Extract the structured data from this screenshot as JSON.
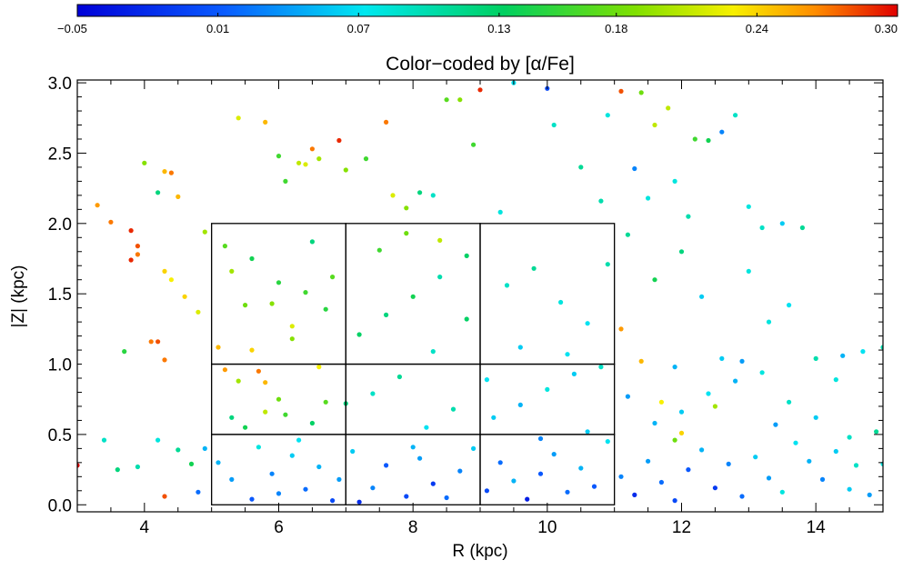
{
  "chart_data": {
    "type": "scatter",
    "title": "Color−coded by [α/Fe]",
    "xlabel": "R (kpc)",
    "ylabel": "|Z| (kpc)",
    "xlim": [
      3,
      15
    ],
    "ylim": [
      -0.05,
      3.02
    ],
    "x_ticks": [
      4,
      6,
      8,
      10,
      12,
      14
    ],
    "x_tick_labels": [
      "4",
      "6",
      "8",
      "10",
      "12",
      "14"
    ],
    "y_ticks": [
      0,
      0.5,
      1,
      1.5,
      2,
      2.5,
      3
    ],
    "y_tick_labels": [
      "0.0",
      "0.5",
      "1.0",
      "1.5",
      "2.0",
      "2.5",
      "3.0"
    ],
    "colorbar": {
      "label": "[α/Fe]",
      "range": [
        -0.05,
        0.3
      ],
      "tick_values": [
        -0.05,
        0.01,
        0.07,
        0.13,
        0.18,
        0.24,
        0.3
      ],
      "tick_labels": [
        "−0.05",
        "0.01",
        "0.07",
        "0.13",
        "0.18",
        "0.24",
        "0.30"
      ],
      "colormap": "rainbow"
    },
    "grid_boxes": [
      {
        "x0": 5,
        "x1": 7,
        "y0": 0,
        "y1": 0.5
      },
      {
        "x0": 5,
        "x1": 7,
        "y0": 0.5,
        "y1": 1.0
      },
      {
        "x0": 5,
        "x1": 7,
        "y0": 1.0,
        "y1": 2.0
      },
      {
        "x0": 7,
        "x1": 9,
        "y0": 0,
        "y1": 0.5
      },
      {
        "x0": 7,
        "x1": 9,
        "y0": 0.5,
        "y1": 1.0
      },
      {
        "x0": 7,
        "x1": 9,
        "y0": 1.0,
        "y1": 2.0
      },
      {
        "x0": 9,
        "x1": 11,
        "y0": 0,
        "y1": 0.5
      },
      {
        "x0": 9,
        "x1": 11,
        "y0": 0.5,
        "y1": 1.0
      },
      {
        "x0": 9,
        "x1": 11,
        "y0": 1.0,
        "y1": 2.0
      }
    ],
    "points": [
      [
        3.3,
        2.13,
        0.26
      ],
      [
        3.5,
        2.01,
        0.27
      ],
      [
        3.8,
        1.95,
        0.29
      ],
      [
        3.8,
        1.74,
        0.29
      ],
      [
        3.9,
        1.84,
        0.28
      ],
      [
        3.9,
        1.78,
        0.27
      ],
      [
        4.2,
        2.22,
        0.12
      ],
      [
        4.3,
        2.37,
        0.25
      ],
      [
        4.4,
        2.36,
        0.27
      ],
      [
        4.5,
        2.19,
        0.25
      ],
      [
        4.1,
        1.16,
        0.27
      ],
      [
        4.2,
        1.16,
        0.28
      ],
      [
        4.3,
        1.66,
        0.24
      ],
      [
        4.3,
        1.03,
        0.27
      ],
      [
        4.4,
        1.6,
        0.23
      ],
      [
        4.6,
        1.48,
        0.24
      ],
      [
        4.8,
        1.37,
        0.22
      ],
      [
        4.9,
        1.94,
        0.2
      ],
      [
        4.0,
        2.43,
        0.19
      ],
      [
        3.7,
        1.09,
        0.15
      ],
      [
        3.4,
        0.46,
        0.09
      ],
      [
        3.6,
        0.25,
        0.12
      ],
      [
        3.0,
        0.28,
        0.3
      ],
      [
        3.9,
        0.27,
        0.1
      ],
      [
        4.3,
        0.06,
        0.28
      ],
      [
        4.5,
        0.39,
        0.11
      ],
      [
        4.7,
        0.29,
        0.14
      ],
      [
        4.2,
        0.46,
        0.08
      ],
      [
        4.8,
        0.09,
        0.02
      ],
      [
        4.9,
        0.4,
        0.05
      ],
      [
        5.1,
        1.12,
        0.25
      ],
      [
        5.2,
        0.96,
        0.26
      ],
      [
        5.4,
        0.88,
        0.2
      ],
      [
        5.6,
        1.1,
        0.24
      ],
      [
        5.7,
        0.95,
        0.27
      ],
      [
        5.8,
        0.87,
        0.25
      ],
      [
        6.0,
        0.75,
        0.18
      ],
      [
        6.1,
        0.64,
        0.16
      ],
      [
        5.3,
        0.62,
        0.12
      ],
      [
        5.5,
        0.55,
        0.14
      ],
      [
        5.9,
        1.43,
        0.19
      ],
      [
        6.2,
        1.27,
        0.22
      ],
      [
        6.4,
        1.51,
        0.16
      ],
      [
        5.2,
        1.84,
        0.17
      ],
      [
        5.6,
        1.75,
        0.14
      ],
      [
        6.5,
        1.87,
        0.12
      ],
      [
        6.8,
        1.62,
        0.17
      ],
      [
        6.7,
        1.39,
        0.15
      ],
      [
        6.3,
        2.43,
        0.21
      ],
      [
        5.4,
        2.75,
        0.22
      ],
      [
        5.8,
        2.72,
        0.25
      ],
      [
        6.0,
        2.48,
        0.16
      ],
      [
        6.5,
        2.53,
        0.27
      ],
      [
        6.6,
        2.46,
        0.2
      ],
      [
        6.9,
        2.59,
        0.29
      ],
      [
        6.1,
        2.3,
        0.16
      ],
      [
        6.4,
        2.42,
        0.22
      ],
      [
        7.0,
        2.38,
        0.19
      ],
      [
        7.3,
        2.46,
        0.16
      ],
      [
        7.6,
        2.72,
        0.27
      ],
      [
        7.7,
        2.2,
        0.22
      ],
      [
        7.9,
        2.11,
        0.19
      ],
      [
        8.1,
        2.22,
        0.12
      ],
      [
        8.3,
        2.2,
        0.09
      ],
      [
        8.5,
        2.88,
        0.17
      ],
      [
        8.7,
        2.88,
        0.19
      ],
      [
        8.9,
        2.56,
        0.16
      ],
      [
        9.0,
        2.95,
        0.29
      ],
      [
        9.3,
        2.08,
        0.08
      ],
      [
        9.5,
        3.0,
        0.07
      ],
      [
        10.0,
        2.96,
        0.0
      ],
      [
        10.1,
        2.7,
        0.09
      ],
      [
        10.5,
        2.4,
        0.11
      ],
      [
        10.8,
        2.16,
        0.1
      ],
      [
        10.9,
        2.77,
        0.08
      ],
      [
        11.1,
        2.94,
        0.28
      ],
      [
        11.4,
        2.93,
        0.18
      ],
      [
        11.6,
        2.7,
        0.21
      ],
      [
        11.8,
        2.82,
        0.21
      ],
      [
        11.9,
        2.3,
        0.08
      ],
      [
        12.1,
        2.05,
        0.1
      ],
      [
        12.4,
        2.59,
        0.14
      ],
      [
        12.6,
        2.65,
        0.03
      ],
      [
        12.8,
        2.77,
        0.09
      ],
      [
        12.2,
        2.6,
        0.16
      ],
      [
        11.3,
        2.39,
        0.03
      ],
      [
        11.5,
        2.18,
        0.08
      ],
      [
        13.2,
        1.97,
        0.09
      ],
      [
        13.5,
        2.0,
        0.06
      ],
      [
        13.8,
        1.97,
        0.11
      ],
      [
        13.0,
        2.12,
        0.08
      ],
      [
        13.3,
        1.3,
        0.08
      ],
      [
        13.6,
        1.42,
        0.07
      ],
      [
        13.0,
        1.66,
        0.08
      ],
      [
        12.9,
        1.02,
        0.04
      ],
      [
        14.0,
        1.04,
        0.1
      ],
      [
        14.4,
        1.06,
        0.05
      ],
      [
        14.7,
        1.09,
        0.07
      ],
      [
        15.0,
        1.12,
        0.1
      ],
      [
        14.3,
        0.89,
        0.08
      ],
      [
        14.9,
        0.52,
        0.11
      ],
      [
        14.6,
        0.28,
        0.09
      ],
      [
        14.8,
        0.07,
        0.04
      ],
      [
        15.0,
        0.29,
        0.08
      ],
      [
        14.5,
        0.11,
        0.06
      ],
      [
        12.0,
        1.8,
        0.12
      ],
      [
        11.6,
        1.6,
        0.14
      ],
      [
        11.2,
        1.92,
        0.11
      ],
      [
        12.3,
        1.48,
        0.06
      ],
      [
        11.1,
        1.25,
        0.26
      ],
      [
        11.4,
        1.02,
        0.25
      ],
      [
        11.7,
        0.73,
        0.23
      ],
      [
        12.0,
        0.51,
        0.24
      ],
      [
        12.5,
        0.7,
        0.2
      ],
      [
        11.9,
        0.46,
        0.18
      ],
      [
        5.1,
        0.3,
        0.05
      ],
      [
        5.3,
        0.18,
        0.04
      ],
      [
        5.6,
        0.04,
        0.01
      ],
      [
        5.9,
        0.22,
        0.03
      ],
      [
        6.2,
        0.35,
        0.06
      ],
      [
        6.4,
        0.11,
        0.02
      ],
      [
        6.6,
        0.27,
        0.05
      ],
      [
        6.8,
        0.03,
        0.0
      ],
      [
        5.7,
        0.41,
        0.08
      ],
      [
        6.0,
        0.08,
        0.03
      ],
      [
        6.3,
        0.46,
        0.07
      ],
      [
        6.9,
        0.18,
        0.04
      ],
      [
        7.2,
        0.02,
        -0.02
      ],
      [
        7.1,
        0.38,
        0.06
      ],
      [
        7.4,
        0.12,
        0.03
      ],
      [
        7.6,
        0.28,
        0.01
      ],
      [
        7.9,
        0.06,
        0.0
      ],
      [
        8.1,
        0.33,
        0.04
      ],
      [
        8.3,
        0.15,
        -0.01
      ],
      [
        8.5,
        0.05,
        0.02
      ],
      [
        8.7,
        0.24,
        0.03
      ],
      [
        8.9,
        0.4,
        0.06
      ],
      [
        9.1,
        0.1,
        0.0
      ],
      [
        9.3,
        0.3,
        0.02
      ],
      [
        9.5,
        0.17,
        0.05
      ],
      [
        9.7,
        0.04,
        -0.03
      ],
      [
        9.9,
        0.22,
        0.01
      ],
      [
        10.1,
        0.36,
        0.04
      ],
      [
        10.3,
        0.09,
        0.02
      ],
      [
        10.5,
        0.26,
        0.05
      ],
      [
        10.7,
        0.13,
        0.01
      ],
      [
        10.9,
        0.45,
        0.07
      ],
      [
        11.1,
        0.2,
        0.03
      ],
      [
        11.3,
        0.07,
        -0.02
      ],
      [
        11.5,
        0.31,
        0.04
      ],
      [
        11.7,
        0.16,
        0.02
      ],
      [
        11.9,
        0.03,
        0.0
      ],
      [
        12.1,
        0.25,
        0.01
      ],
      [
        12.3,
        0.39,
        0.05
      ],
      [
        12.5,
        0.12,
        -0.01
      ],
      [
        12.7,
        0.29,
        0.03
      ],
      [
        12.9,
        0.06,
        0.02
      ],
      [
        13.1,
        0.34,
        0.06
      ],
      [
        13.3,
        0.19,
        0.04
      ],
      [
        13.5,
        0.09,
        0.08
      ],
      [
        13.7,
        0.44,
        0.07
      ],
      [
        13.9,
        0.31,
        0.05
      ],
      [
        14.1,
        0.18,
        0.03
      ],
      [
        14.3,
        0.38,
        0.06
      ],
      [
        14.5,
        0.48,
        0.09
      ],
      [
        9.2,
        0.62,
        0.06
      ],
      [
        9.6,
        0.71,
        0.05
      ],
      [
        10.0,
        0.82,
        0.08
      ],
      [
        10.4,
        0.93,
        0.06
      ],
      [
        10.8,
        0.98,
        0.09
      ],
      [
        11.2,
        0.77,
        0.04
      ],
      [
        11.6,
        0.58,
        0.05
      ],
      [
        12.0,
        0.66,
        0.06
      ],
      [
        12.4,
        0.79,
        0.07
      ],
      [
        12.8,
        0.88,
        0.05
      ],
      [
        13.2,
        0.94,
        0.08
      ],
      [
        13.6,
        0.73,
        0.09
      ],
      [
        14.0,
        0.62,
        0.06
      ],
      [
        8.2,
        0.55,
        0.07
      ],
      [
        8.6,
        0.68,
        0.1
      ],
      [
        7.4,
        0.79,
        0.09
      ],
      [
        7.8,
        0.91,
        0.11
      ],
      [
        7.2,
        1.21,
        0.13
      ],
      [
        7.6,
        1.35,
        0.12
      ],
      [
        8.0,
        1.48,
        0.14
      ],
      [
        8.4,
        1.62,
        0.1
      ],
      [
        8.8,
        1.77,
        0.13
      ],
      [
        9.4,
        1.56,
        0.09
      ],
      [
        9.8,
        1.68,
        0.11
      ],
      [
        10.2,
        1.44,
        0.08
      ],
      [
        10.6,
        1.29,
        0.07
      ],
      [
        10.9,
        1.71,
        0.1
      ],
      [
        9.6,
        1.12,
        0.06
      ],
      [
        10.3,
        1.07,
        0.07
      ],
      [
        8.3,
        1.09,
        0.09
      ],
      [
        7.9,
        1.93,
        0.18
      ],
      [
        8.4,
        1.88,
        0.21
      ],
      [
        7.5,
        1.81,
        0.16
      ],
      [
        6.2,
        1.18,
        0.19
      ],
      [
        6.6,
        0.98,
        0.23
      ],
      [
        5.5,
        1.42,
        0.18
      ],
      [
        5.3,
        1.66,
        0.2
      ],
      [
        6.0,
        1.58,
        0.15
      ],
      [
        6.7,
        0.73,
        0.17
      ],
      [
        5.8,
        0.66,
        0.21
      ],
      [
        8.8,
        1.32,
        0.13
      ],
      [
        9.1,
        0.89,
        0.07
      ],
      [
        11.9,
        0.98,
        0.05
      ],
      [
        12.6,
        1.04,
        0.06
      ],
      [
        13.4,
        0.57,
        0.04
      ],
      [
        10.6,
        0.52,
        0.06
      ],
      [
        9.9,
        0.47,
        0.03
      ],
      [
        8.0,
        0.41,
        0.05
      ],
      [
        7.0,
        0.72,
        0.12
      ],
      [
        6.5,
        0.58,
        0.13
      ]
    ]
  }
}
